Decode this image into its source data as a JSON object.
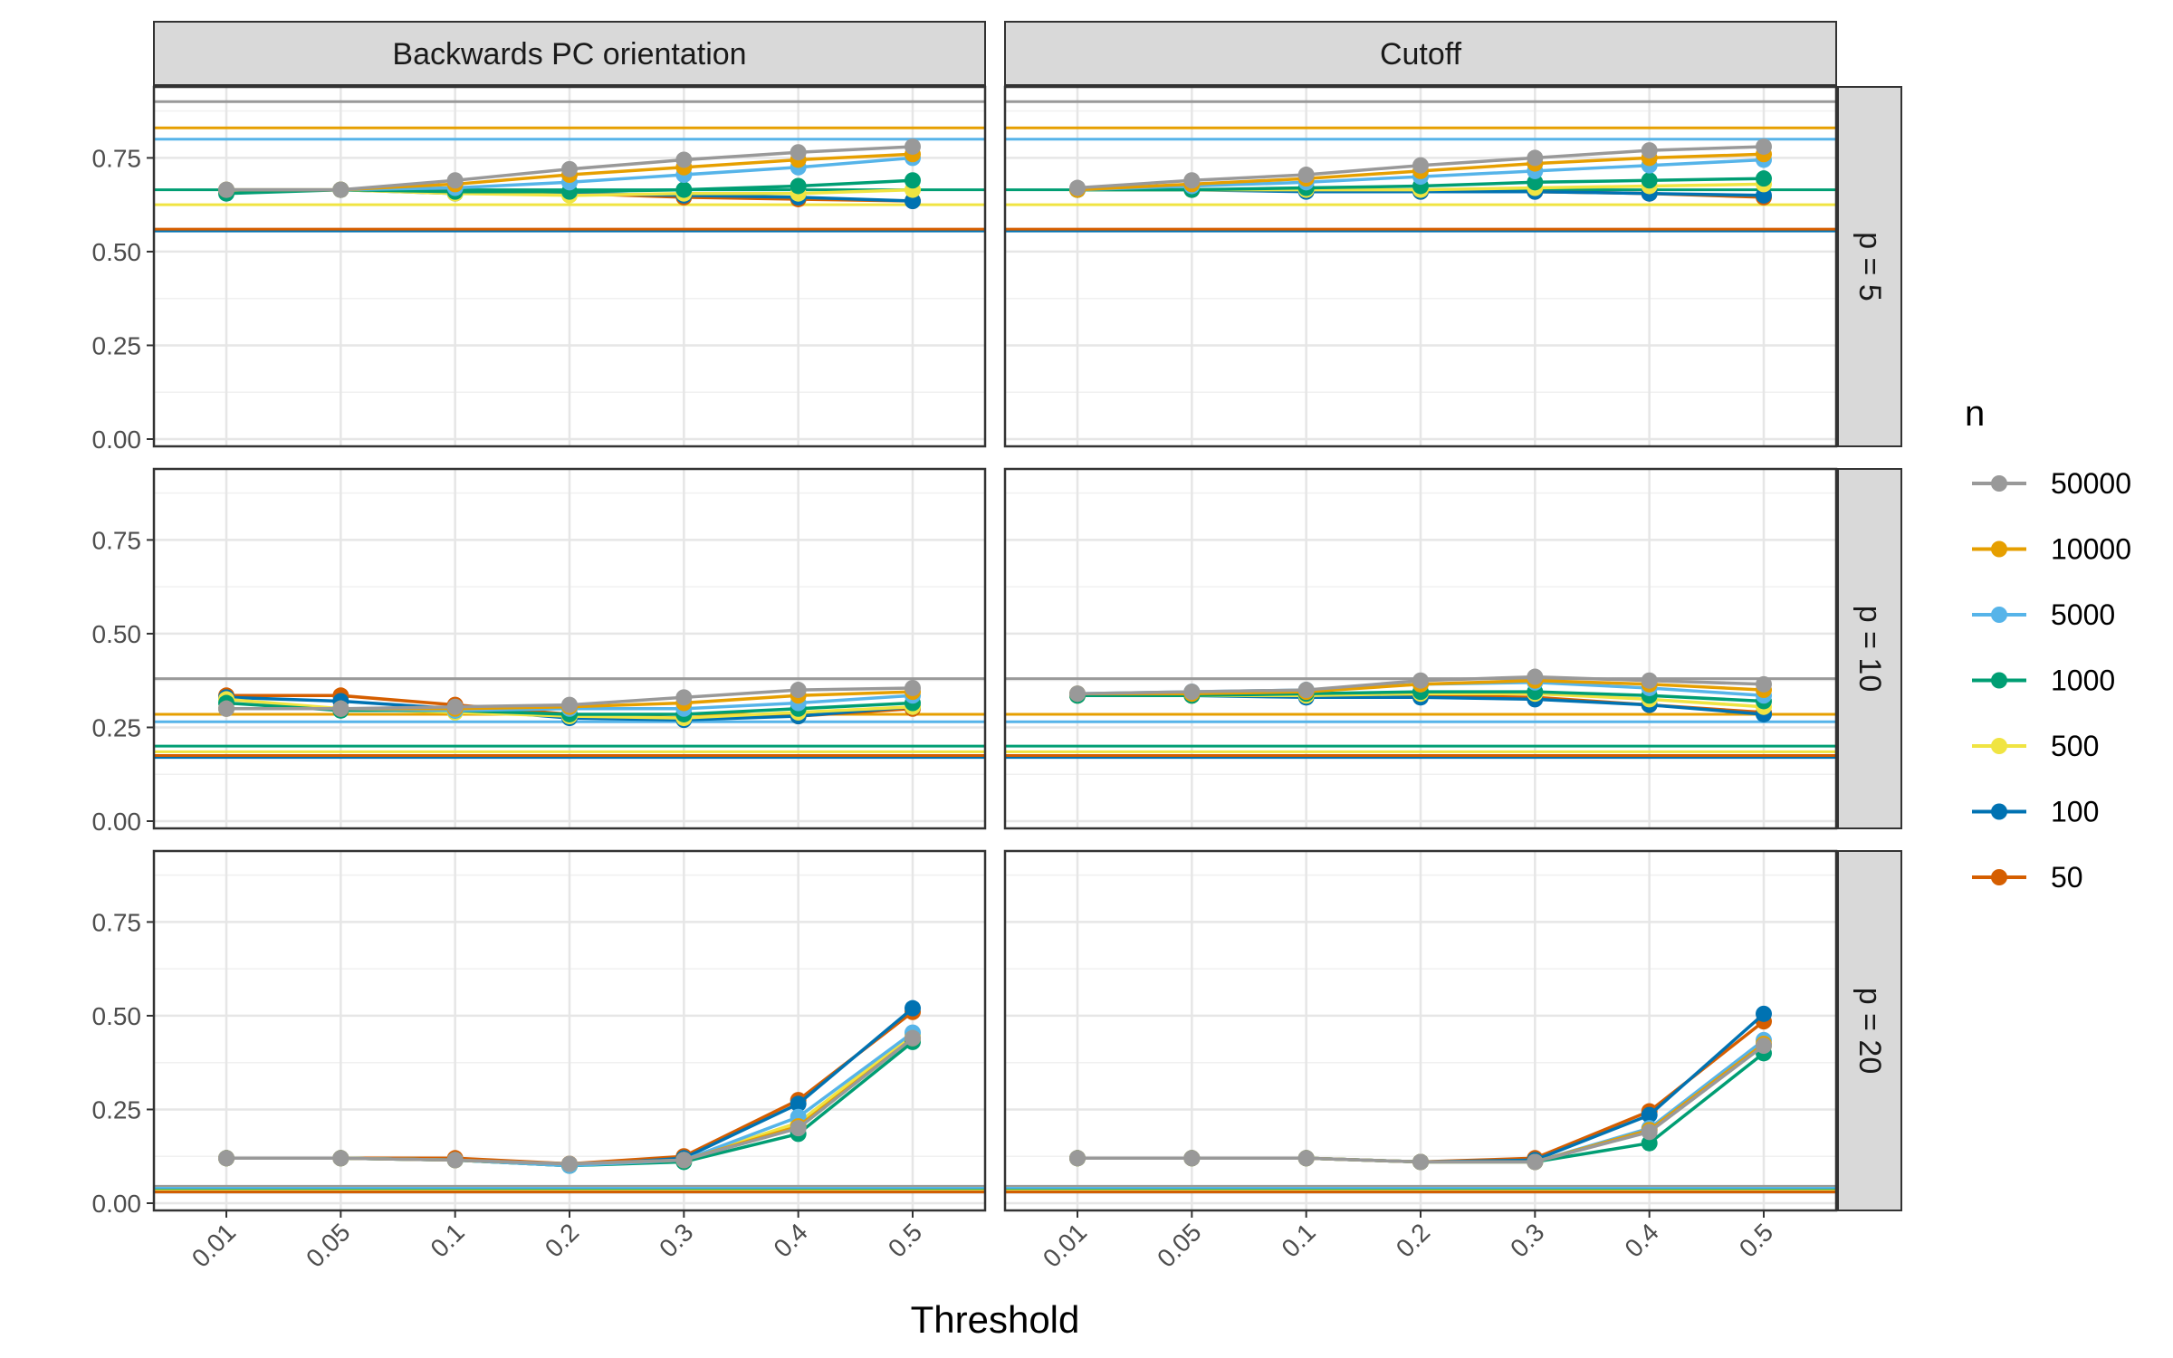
{
  "chart_data": {
    "type": "line",
    "xlabel": "Threshold",
    "ylabel": "",
    "x_ticks": [
      "0.01",
      "0.05",
      "0.1",
      "0.2",
      "0.3",
      "0.4",
      "0.5"
    ],
    "y_ticks": [
      "0.00",
      "0.25",
      "0.50",
      "0.75"
    ],
    "ylim": [
      0,
      0.92
    ],
    "columns": [
      "Backwards PC orientation",
      "Cutoff"
    ],
    "rows": [
      "p = 5",
      "p = 10",
      "p = 20"
    ],
    "legend": {
      "title": "n",
      "position": "right",
      "entries": [
        {
          "name": "50000",
          "color": "#999999"
        },
        {
          "name": "10000",
          "color": "#E69F00"
        },
        {
          "name": "5000",
          "color": "#56B4E9"
        },
        {
          "name": "1000",
          "color": "#009E73"
        },
        {
          "name": "500",
          "color": "#F0E442"
        },
        {
          "name": "100",
          "color": "#0072B2"
        },
        {
          "name": "50",
          "color": "#D55E00"
        }
      ]
    },
    "panels": [
      {
        "column": "Backwards PC orientation",
        "row": "p = 5",
        "hlines": {
          "50000": 0.9,
          "10000": 0.83,
          "5000": 0.8,
          "1000": 0.665,
          "500": 0.625,
          "100": 0.555,
          "50": 0.56
        },
        "series": {
          "50000": [
            0.665,
            0.665,
            0.69,
            0.72,
            0.745,
            0.765,
            0.78
          ],
          "10000": [
            0.665,
            0.665,
            0.68,
            0.705,
            0.725,
            0.745,
            0.76
          ],
          "5000": [
            0.665,
            0.665,
            0.67,
            0.685,
            0.705,
            0.725,
            0.75
          ],
          "1000": [
            0.655,
            0.665,
            0.66,
            0.66,
            0.665,
            0.675,
            0.69
          ],
          "500": [
            0.66,
            0.665,
            0.655,
            0.65,
            0.655,
            0.655,
            0.665
          ],
          "100": [
            0.66,
            0.665,
            0.655,
            0.655,
            0.65,
            0.645,
            0.635
          ],
          "50": [
            0.66,
            0.665,
            0.66,
            0.655,
            0.645,
            0.64,
            0.635
          ]
        }
      },
      {
        "column": "Cutoff",
        "row": "p = 5",
        "hlines": {
          "50000": 0.9,
          "10000": 0.83,
          "5000": 0.8,
          "1000": 0.665,
          "500": 0.625,
          "100": 0.555,
          "50": 0.56
        },
        "series": {
          "50000": [
            0.67,
            0.69,
            0.705,
            0.73,
            0.75,
            0.77,
            0.78
          ],
          "10000": [
            0.665,
            0.68,
            0.695,
            0.715,
            0.735,
            0.75,
            0.76
          ],
          "5000": [
            0.665,
            0.675,
            0.685,
            0.7,
            0.715,
            0.73,
            0.745
          ],
          "1000": [
            0.665,
            0.665,
            0.67,
            0.675,
            0.685,
            0.69,
            0.695
          ],
          "500": [
            0.665,
            0.665,
            0.665,
            0.665,
            0.67,
            0.675,
            0.68
          ],
          "100": [
            0.665,
            0.665,
            0.66,
            0.66,
            0.66,
            0.655,
            0.65
          ],
          "50": [
            0.665,
            0.665,
            0.665,
            0.66,
            0.66,
            0.655,
            0.645
          ]
        }
      },
      {
        "column": "Backwards PC orientation",
        "row": "p = 10",
        "hlines": {
          "50000": 0.38,
          "10000": 0.285,
          "5000": 0.265,
          "1000": 0.2,
          "500": 0.185,
          "100": 0.17,
          "50": 0.175
        },
        "series": {
          "50000": [
            0.3,
            0.3,
            0.305,
            0.31,
            0.33,
            0.35,
            0.355
          ],
          "10000": [
            0.3,
            0.3,
            0.3,
            0.305,
            0.315,
            0.335,
            0.345
          ],
          "5000": [
            0.3,
            0.3,
            0.295,
            0.3,
            0.3,
            0.315,
            0.335
          ],
          "1000": [
            0.315,
            0.295,
            0.295,
            0.285,
            0.285,
            0.3,
            0.315
          ],
          "500": [
            0.325,
            0.3,
            0.29,
            0.28,
            0.275,
            0.29,
            0.305
          ],
          "100": [
            0.33,
            0.32,
            0.3,
            0.275,
            0.27,
            0.28,
            0.305
          ],
          "50": [
            0.335,
            0.335,
            0.31,
            0.285,
            0.275,
            0.28,
            0.3
          ]
        }
      },
      {
        "column": "Cutoff",
        "row": "p = 10",
        "hlines": {
          "50000": 0.38,
          "10000": 0.285,
          "5000": 0.265,
          "1000": 0.2,
          "500": 0.185,
          "100": 0.17,
          "50": 0.175
        },
        "series": {
          "50000": [
            0.34,
            0.345,
            0.35,
            0.375,
            0.385,
            0.375,
            0.365
          ],
          "10000": [
            0.34,
            0.34,
            0.345,
            0.365,
            0.375,
            0.365,
            0.35
          ],
          "5000": [
            0.34,
            0.345,
            0.35,
            0.365,
            0.37,
            0.355,
            0.335
          ],
          "1000": [
            0.335,
            0.335,
            0.34,
            0.345,
            0.345,
            0.335,
            0.32
          ],
          "500": [
            0.335,
            0.335,
            0.335,
            0.34,
            0.34,
            0.325,
            0.305
          ],
          "100": [
            0.335,
            0.335,
            0.33,
            0.33,
            0.325,
            0.31,
            0.285
          ],
          "50": [
            0.335,
            0.335,
            0.335,
            0.335,
            0.33,
            0.31,
            0.29
          ]
        }
      },
      {
        "column": "Backwards PC orientation",
        "row": "p = 20",
        "hlines": {
          "50000": 0.045,
          "10000": 0.04,
          "5000": 0.04,
          "1000": 0.035,
          "500": 0.033,
          "100": 0.03,
          "50": 0.03
        },
        "series": {
          "50000": [
            0.12,
            0.12,
            0.115,
            0.105,
            0.115,
            0.2,
            0.44
          ],
          "10000": [
            0.12,
            0.12,
            0.115,
            0.105,
            0.115,
            0.205,
            0.44
          ],
          "5000": [
            0.12,
            0.12,
            0.115,
            0.1,
            0.115,
            0.23,
            0.455
          ],
          "1000": [
            0.12,
            0.12,
            0.115,
            0.1,
            0.11,
            0.185,
            0.43
          ],
          "500": [
            0.12,
            0.12,
            0.115,
            0.1,
            0.115,
            0.215,
            0.45
          ],
          "100": [
            0.12,
            0.12,
            0.115,
            0.1,
            0.12,
            0.265,
            0.52
          ],
          "50": [
            0.12,
            0.12,
            0.12,
            0.105,
            0.125,
            0.275,
            0.51
          ]
        }
      },
      {
        "column": "Cutoff",
        "row": "p = 20",
        "hlines": {
          "50000": 0.045,
          "10000": 0.04,
          "5000": 0.04,
          "1000": 0.035,
          "500": 0.033,
          "100": 0.03,
          "50": 0.03
        },
        "series": {
          "50000": [
            0.12,
            0.12,
            0.12,
            0.11,
            0.11,
            0.19,
            0.42
          ],
          "10000": [
            0.12,
            0.12,
            0.12,
            0.11,
            0.11,
            0.195,
            0.425
          ],
          "5000": [
            0.12,
            0.12,
            0.12,
            0.11,
            0.11,
            0.2,
            0.435
          ],
          "1000": [
            0.12,
            0.12,
            0.12,
            0.11,
            0.11,
            0.16,
            0.4
          ],
          "500": [
            0.12,
            0.12,
            0.12,
            0.11,
            0.11,
            0.195,
            0.42
          ],
          "100": [
            0.12,
            0.12,
            0.12,
            0.11,
            0.115,
            0.235,
            0.505
          ],
          "50": [
            0.12,
            0.12,
            0.12,
            0.11,
            0.12,
            0.245,
            0.485
          ]
        }
      }
    ]
  }
}
